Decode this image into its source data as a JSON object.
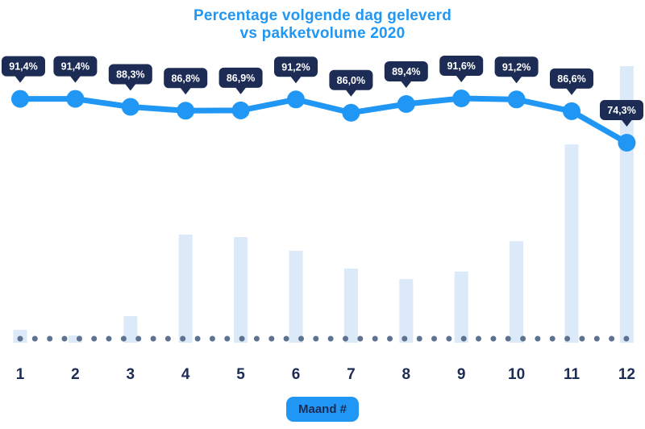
{
  "title": {
    "line1": "Percentage volgende dag geleverd",
    "line2": "vs pakketvolume 2020"
  },
  "colors": {
    "background": "#ffffff",
    "accent_blue": "#2097f4",
    "navy": "#1c2c54",
    "bar_fill": "#dbe9f8",
    "dot_slate": "#5d7290",
    "tooltip_text": "#ffffff"
  },
  "chart_data": {
    "type": "combo",
    "title": "Percentage volgende dag geleverd vs pakketvolume 2020",
    "xlabel": "Maand #",
    "ylabel": "",
    "categories": [
      "1",
      "2",
      "3",
      "4",
      "5",
      "6",
      "7",
      "8",
      "9",
      "10",
      "11",
      "12"
    ],
    "legend": "none",
    "grid": false,
    "axes_drawn": false,
    "series": [
      {
        "name": "Percentage volgende dag geleverd",
        "chart": "line",
        "unit": "%",
        "ylim_est": [
          70,
          95
        ],
        "values": [
          91.4,
          91.4,
          88.3,
          86.8,
          86.9,
          91.2,
          86.0,
          89.4,
          91.6,
          91.2,
          86.6,
          74.3
        ],
        "labels": [
          "91,4%",
          "91,4%",
          "88,3%",
          "86,8%",
          "86,9%",
          "91,2%",
          "86,0%",
          "89,4%",
          "91,6%",
          "91,2%",
          "86,6%",
          "74,3%"
        ]
      },
      {
        "name": "Pakketvolume 2020",
        "chart": "bar",
        "unit": "relative volume index (December = 100, no axis labels shown)",
        "values": [
          4.7,
          2.6,
          9.6,
          39.1,
          38.2,
          33.2,
          26.8,
          23.0,
          25.7,
          36.7,
          71.7,
          100
        ]
      }
    ],
    "annotations": "Each line point has a dark navy speech-bubble tooltip with the percentage; a dotted slate baseline runs along the bottom of the bars."
  }
}
